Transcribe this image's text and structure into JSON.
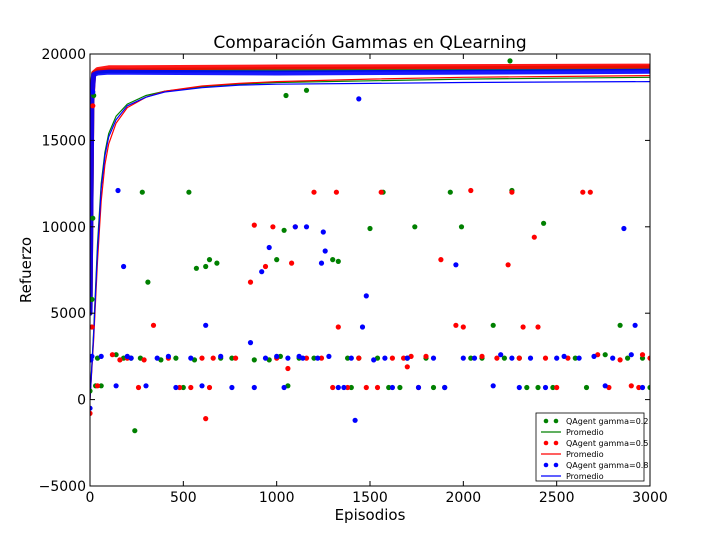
{
  "chart_data": {
    "type": "scatter",
    "title": "Comparación Gammas en QLearning",
    "xlabel": "Episodios",
    "ylabel": "Refuerzo",
    "xlim": [
      0,
      3000
    ],
    "ylim": [
      -5000,
      20000
    ],
    "x_ticks": [
      "0",
      "500",
      "1000",
      "1500",
      "2000",
      "2500",
      "3000"
    ],
    "y_ticks": [
      "−5000",
      "0",
      "5000",
      "10000",
      "15000",
      "20000"
    ],
    "legend_position": "lower-right",
    "series": [
      {
        "name": "QAgent gamma=0.2",
        "kind": "points",
        "color": "#008000",
        "band": [
          [
            0,
            5000
          ],
          [
            10,
            17700
          ],
          [
            20,
            18900
          ],
          [
            40,
            19000
          ],
          [
            100,
            19050
          ],
          [
            1000,
            19100
          ],
          [
            3000,
            19200
          ]
        ],
        "points": [
          [
            0,
            500
          ],
          [
            10,
            5800
          ],
          [
            15,
            10500
          ],
          [
            20,
            17600
          ],
          [
            30,
            800
          ],
          [
            40,
            2400
          ],
          [
            60,
            800
          ],
          [
            140,
            2600
          ],
          [
            180,
            2400
          ],
          [
            220,
            2400
          ],
          [
            240,
            -1800
          ],
          [
            270,
            2400
          ],
          [
            280,
            12000
          ],
          [
            310,
            6800
          ],
          [
            380,
            2300
          ],
          [
            460,
            2400
          ],
          [
            500,
            700
          ],
          [
            530,
            12000
          ],
          [
            560,
            2300
          ],
          [
            570,
            7600
          ],
          [
            620,
            7700
          ],
          [
            640,
            8100
          ],
          [
            680,
            7900
          ],
          [
            700,
            2400
          ],
          [
            760,
            2400
          ],
          [
            880,
            2300
          ],
          [
            960,
            2300
          ],
          [
            1000,
            8100
          ],
          [
            1020,
            2500
          ],
          [
            1040,
            9800
          ],
          [
            1050,
            17600
          ],
          [
            1060,
            800
          ],
          [
            1120,
            2400
          ],
          [
            1160,
            17900
          ],
          [
            1200,
            2400
          ],
          [
            1300,
            8100
          ],
          [
            1330,
            8000
          ],
          [
            1380,
            2400
          ],
          [
            1400,
            700
          ],
          [
            1440,
            2400
          ],
          [
            1500,
            9900
          ],
          [
            1540,
            2400
          ],
          [
            1570,
            12000
          ],
          [
            1600,
            700
          ],
          [
            1660,
            700
          ],
          [
            1700,
            2400
          ],
          [
            1740,
            10000
          ],
          [
            1800,
            2400
          ],
          [
            1840,
            700
          ],
          [
            1900,
            700
          ],
          [
            1930,
            12000
          ],
          [
            1990,
            10000
          ],
          [
            2040,
            2400
          ],
          [
            2100,
            2400
          ],
          [
            2160,
            4300
          ],
          [
            2220,
            2400
          ],
          [
            2250,
            19600
          ],
          [
            2260,
            12100
          ],
          [
            2300,
            2400
          ],
          [
            2340,
            700
          ],
          [
            2400,
            700
          ],
          [
            2430,
            10200
          ],
          [
            2480,
            700
          ],
          [
            2600,
            2400
          ],
          [
            2660,
            700
          ],
          [
            2760,
            2600
          ],
          [
            2840,
            4300
          ],
          [
            2880,
            2400
          ],
          [
            2960,
            2400
          ],
          [
            3000,
            700
          ]
        ]
      },
      {
        "name": "Promedio",
        "kind": "line",
        "color": "#008000",
        "points": [
          [
            0,
            0
          ],
          [
            20,
            4000
          ],
          [
            40,
            9000
          ],
          [
            60,
            12500
          ],
          [
            80,
            14300
          ],
          [
            100,
            15400
          ],
          [
            140,
            16400
          ],
          [
            200,
            17100
          ],
          [
            300,
            17600
          ],
          [
            400,
            17850
          ],
          [
            600,
            18100
          ],
          [
            800,
            18250
          ],
          [
            1000,
            18350
          ],
          [
            1500,
            18450
          ],
          [
            2000,
            18550
          ],
          [
            2500,
            18600
          ],
          [
            3000,
            18650
          ]
        ]
      },
      {
        "name": "QAgent gamma=0.5",
        "kind": "points",
        "color": "#ff0000",
        "band": [
          [
            0,
            5000
          ],
          [
            10,
            17200
          ],
          [
            20,
            18900
          ],
          [
            40,
            19100
          ],
          [
            100,
            19200
          ],
          [
            1000,
            19250
          ],
          [
            3000,
            19300
          ]
        ],
        "points": [
          [
            0,
            -800
          ],
          [
            10,
            4200
          ],
          [
            15,
            17000
          ],
          [
            40,
            800
          ],
          [
            120,
            2600
          ],
          [
            160,
            2300
          ],
          [
            200,
            2400
          ],
          [
            260,
            700
          ],
          [
            290,
            2300
          ],
          [
            340,
            4300
          ],
          [
            420,
            2400
          ],
          [
            480,
            700
          ],
          [
            540,
            700
          ],
          [
            600,
            2400
          ],
          [
            620,
            -1100
          ],
          [
            640,
            700
          ],
          [
            660,
            2400
          ],
          [
            780,
            2400
          ],
          [
            860,
            6800
          ],
          [
            880,
            10100
          ],
          [
            940,
            7700
          ],
          [
            980,
            10000
          ],
          [
            1000,
            2400
          ],
          [
            1060,
            1800
          ],
          [
            1080,
            7900
          ],
          [
            1100,
            10000
          ],
          [
            1160,
            2400
          ],
          [
            1200,
            12000
          ],
          [
            1240,
            2400
          ],
          [
            1300,
            700
          ],
          [
            1320,
            12000
          ],
          [
            1330,
            4200
          ],
          [
            1380,
            700
          ],
          [
            1440,
            2400
          ],
          [
            1480,
            700
          ],
          [
            1540,
            700
          ],
          [
            1560,
            12000
          ],
          [
            1620,
            2400
          ],
          [
            1680,
            2400
          ],
          [
            1700,
            1900
          ],
          [
            1720,
            2500
          ],
          [
            1760,
            700
          ],
          [
            1800,
            2500
          ],
          [
            1880,
            8100
          ],
          [
            1960,
            4300
          ],
          [
            2000,
            4200
          ],
          [
            2040,
            12100
          ],
          [
            2100,
            2500
          ],
          [
            2180,
            2400
          ],
          [
            2240,
            7800
          ],
          [
            2260,
            12000
          ],
          [
            2300,
            2400
          ],
          [
            2320,
            4200
          ],
          [
            2380,
            9400
          ],
          [
            2400,
            4200
          ],
          [
            2440,
            2400
          ],
          [
            2500,
            700
          ],
          [
            2560,
            2400
          ],
          [
            2640,
            12000
          ],
          [
            2680,
            12000
          ],
          [
            2720,
            2600
          ],
          [
            2780,
            700
          ],
          [
            2840,
            2300
          ],
          [
            2900,
            800
          ],
          [
            2940,
            700
          ],
          [
            2960,
            2600
          ],
          [
            3000,
            2400
          ]
        ]
      },
      {
        "name": "Promedio",
        "kind": "line",
        "color": "#ff0000",
        "points": [
          [
            0,
            0
          ],
          [
            20,
            3500
          ],
          [
            40,
            8000
          ],
          [
            60,
            11500
          ],
          [
            80,
            13600
          ],
          [
            100,
            14800
          ],
          [
            140,
            16000
          ],
          [
            200,
            16900
          ],
          [
            300,
            17500
          ],
          [
            400,
            17850
          ],
          [
            600,
            18150
          ],
          [
            800,
            18300
          ],
          [
            1000,
            18400
          ],
          [
            1500,
            18550
          ],
          [
            2000,
            18650
          ],
          [
            2500,
            18700
          ],
          [
            3000,
            18750
          ]
        ]
      },
      {
        "name": "QAgent gamma=0.8",
        "kind": "points",
        "color": "#0000ff",
        "band": [
          [
            0,
            5000
          ],
          [
            10,
            17500
          ],
          [
            20,
            18800
          ],
          [
            40,
            18900
          ],
          [
            100,
            18950
          ],
          [
            1000,
            18900
          ],
          [
            3000,
            19000
          ]
        ],
        "points": [
          [
            0,
            -500
          ],
          [
            5,
            2300
          ],
          [
            10,
            2500
          ],
          [
            15,
            17800
          ],
          [
            60,
            2500
          ],
          [
            140,
            800
          ],
          [
            150,
            12100
          ],
          [
            180,
            7700
          ],
          [
            200,
            2500
          ],
          [
            220,
            2400
          ],
          [
            300,
            800
          ],
          [
            360,
            2400
          ],
          [
            420,
            2500
          ],
          [
            460,
            700
          ],
          [
            540,
            2400
          ],
          [
            600,
            800
          ],
          [
            620,
            4300
          ],
          [
            700,
            2500
          ],
          [
            760,
            700
          ],
          [
            860,
            3300
          ],
          [
            880,
            700
          ],
          [
            920,
            7400
          ],
          [
            940,
            2400
          ],
          [
            960,
            8800
          ],
          [
            1000,
            2500
          ],
          [
            1040,
            700
          ],
          [
            1060,
            2400
          ],
          [
            1100,
            10000
          ],
          [
            1120,
            2500
          ],
          [
            1140,
            2400
          ],
          [
            1160,
            10000
          ],
          [
            1220,
            2400
          ],
          [
            1240,
            7900
          ],
          [
            1250,
            9700
          ],
          [
            1260,
            8600
          ],
          [
            1280,
            2500
          ],
          [
            1330,
            700
          ],
          [
            1360,
            700
          ],
          [
            1400,
            2400
          ],
          [
            1420,
            -1200
          ],
          [
            1440,
            17400
          ],
          [
            1460,
            4200
          ],
          [
            1480,
            6000
          ],
          [
            1520,
            2300
          ],
          [
            1580,
            2400
          ],
          [
            1620,
            700
          ],
          [
            1700,
            2400
          ],
          [
            1760,
            700
          ],
          [
            1840,
            2400
          ],
          [
            1900,
            700
          ],
          [
            1960,
            7800
          ],
          [
            2000,
            2400
          ],
          [
            2060,
            2400
          ],
          [
            2160,
            800
          ],
          [
            2200,
            2600
          ],
          [
            2260,
            2400
          ],
          [
            2300,
            700
          ],
          [
            2360,
            2400
          ],
          [
            2440,
            700
          ],
          [
            2500,
            2400
          ],
          [
            2540,
            2500
          ],
          [
            2620,
            2400
          ],
          [
            2700,
            2500
          ],
          [
            2760,
            800
          ],
          [
            2800,
            2400
          ],
          [
            2860,
            9900
          ],
          [
            2900,
            2600
          ],
          [
            2920,
            4300
          ],
          [
            2960,
            700
          ]
        ]
      },
      {
        "name": "Promedio",
        "kind": "line",
        "color": "#0000ff",
        "points": [
          [
            0,
            0
          ],
          [
            20,
            3800
          ],
          [
            40,
            8600
          ],
          [
            60,
            12200
          ],
          [
            80,
            14100
          ],
          [
            100,
            15200
          ],
          [
            140,
            16200
          ],
          [
            200,
            17000
          ],
          [
            300,
            17500
          ],
          [
            400,
            17800
          ],
          [
            600,
            18050
          ],
          [
            800,
            18200
          ],
          [
            1000,
            18250
          ],
          [
            1500,
            18300
          ],
          [
            2000,
            18350
          ],
          [
            2500,
            18380
          ],
          [
            3000,
            18400
          ]
        ]
      }
    ]
  }
}
